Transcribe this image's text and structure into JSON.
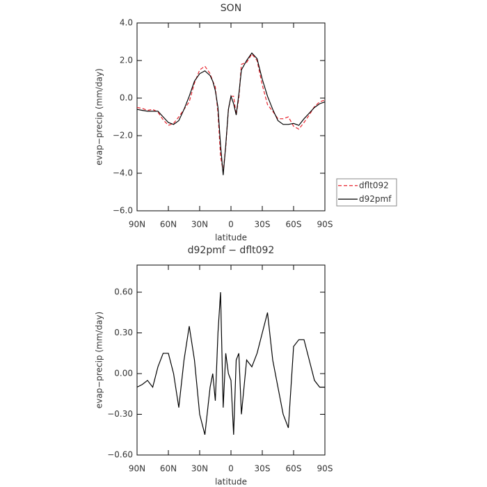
{
  "chart_data": [
    {
      "type": "line",
      "title": "SON",
      "xlabel": "latitude",
      "ylabel": "evap−precip (mm/day)",
      "x": [
        90,
        85,
        80,
        75,
        70,
        65,
        60,
        55,
        50,
        45,
        40,
        35,
        30,
        25,
        20,
        17.5,
        15,
        12.5,
        10,
        7.5,
        5,
        2.5,
        0,
        -2.5,
        -5,
        -7.5,
        -10,
        -15,
        -20,
        -25,
        -30,
        -35,
        -40,
        -45,
        -50,
        -55,
        -60,
        -65,
        -70,
        -75,
        -80,
        -85,
        -90
      ],
      "series": [
        {
          "name": "dflt092",
          "color": "#e8202a",
          "style": "dashed",
          "values": [
            -0.5,
            -0.55,
            -0.65,
            -0.6,
            -0.75,
            -1.15,
            -1.45,
            -1.35,
            -1.0,
            -0.6,
            -0.2,
            0.8,
            1.5,
            1.7,
            1.3,
            0.9,
            0.6,
            -0.8,
            -3.1,
            -3.9,
            -2.6,
            -0.6,
            0.1,
            0.1,
            -0.9,
            0.0,
            1.8,
            1.9,
            2.35,
            2.0,
            0.7,
            -0.35,
            -0.7,
            -1.1,
            -1.1,
            -1.0,
            -1.5,
            -1.65,
            -1.3,
            -0.9,
            -0.45,
            -0.2,
            -0.1
          ]
        },
        {
          "name": "d92pmf",
          "color": "#000000",
          "style": "solid",
          "values": [
            -0.6,
            -0.65,
            -0.7,
            -0.7,
            -0.7,
            -1.0,
            -1.3,
            -1.4,
            -1.2,
            -0.6,
            0.1,
            0.9,
            1.3,
            1.45,
            1.2,
            0.9,
            0.4,
            -0.5,
            -2.5,
            -4.1,
            -2.5,
            -0.6,
            0.1,
            -0.3,
            -0.9,
            0.2,
            1.5,
            2.0,
            2.4,
            2.1,
            1.0,
            0.1,
            -0.6,
            -1.2,
            -1.4,
            -1.4,
            -1.35,
            -1.45,
            -1.1,
            -0.8,
            -0.5,
            -0.3,
            -0.2
          ]
        }
      ],
      "xlim": [
        90,
        -90
      ],
      "xticks": [
        {
          "value": 90,
          "label": "90N"
        },
        {
          "value": 60,
          "label": "60N"
        },
        {
          "value": 30,
          "label": "30N"
        },
        0,
        {
          "value": -30,
          "label": "30S"
        },
        {
          "value": -60,
          "label": "60S"
        },
        {
          "value": -90,
          "label": "90S"
        }
      ],
      "ylim": [
        -6,
        4
      ],
      "yticks": [
        {
          "value": -6,
          "label": "−6.0"
        },
        {
          "value": -4,
          "label": "−4.0"
        },
        {
          "value": -2,
          "label": "−2.0"
        },
        {
          "value": 0,
          "label": "0.0"
        },
        {
          "value": 2,
          "label": "2.0"
        },
        {
          "value": 4,
          "label": "4.0"
        }
      ],
      "legend": "right"
    },
    {
      "type": "line",
      "title": "d92pmf − dflt092",
      "xlabel": "latitude",
      "ylabel": "evap−precip (mm/day)",
      "x": [
        90,
        85,
        80,
        75,
        70,
        65,
        60,
        55,
        50,
        45,
        40,
        35,
        30,
        25,
        20,
        17.5,
        15,
        12.5,
        10,
        7.5,
        5,
        2.5,
        0,
        -2.5,
        -5,
        -7.5,
        -10,
        -15,
        -20,
        -25,
        -30,
        -35,
        -40,
        -45,
        -50,
        -55,
        -60,
        -65,
        -70,
        -75,
        -80,
        -85,
        -90
      ],
      "series": [
        {
          "color": "#000000",
          "style": "solid",
          "values": [
            -0.1,
            -0.08,
            -0.05,
            -0.1,
            0.05,
            0.15,
            0.15,
            0.0,
            -0.25,
            0.1,
            0.35,
            0.1,
            -0.3,
            -0.45,
            -0.1,
            0.0,
            -0.2,
            0.3,
            0.6,
            -0.25,
            0.15,
            0.0,
            -0.05,
            -0.45,
            0.1,
            0.15,
            -0.3,
            0.1,
            0.05,
            0.15,
            0.3,
            0.45,
            0.1,
            -0.1,
            -0.3,
            -0.4,
            0.2,
            0.25,
            0.25,
            0.1,
            -0.05,
            -0.1,
            -0.1
          ]
        }
      ],
      "xlim": [
        90,
        -90
      ],
      "xticks": [
        {
          "value": 90,
          "label": "90N"
        },
        {
          "value": 60,
          "label": "60N"
        },
        {
          "value": 30,
          "label": "30N"
        },
        0,
        {
          "value": -30,
          "label": "30S"
        },
        {
          "value": -60,
          "label": "60S"
        },
        {
          "value": -90,
          "label": "90S"
        }
      ],
      "ylim": [
        -0.6,
        0.8
      ],
      "yticks": [
        {
          "value": -0.6,
          "label": "−0.60"
        },
        {
          "value": -0.3,
          "label": "−0.30"
        },
        {
          "value": 0,
          "label": "0.00"
        },
        {
          "value": 0.3,
          "label": "0.30"
        },
        {
          "value": 0.6,
          "label": "0.60"
        }
      ]
    }
  ]
}
